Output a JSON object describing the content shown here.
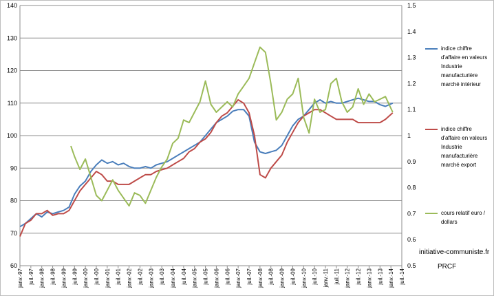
{
  "chart_data": {
    "type": "line",
    "title": "",
    "xlabel": "",
    "ylabel": "",
    "ylim": [
      60,
      140
    ],
    "y_ticks": [
      "60",
      "70",
      "80",
      "90",
      "100",
      "110",
      "120",
      "130",
      "140"
    ],
    "y2lim": [
      0.5,
      1.5
    ],
    "y2_ticks": [
      "0.5",
      "0.6",
      "0.7",
      "0.8",
      "0.9",
      "1",
      "1.1",
      "1.2",
      "1.3",
      "1.4",
      "1.5"
    ],
    "x_tick_labels": [
      "janv.-97",
      "juil.-97",
      "janv.-98",
      "juil.-98",
      "janv.-99",
      "juil.-99",
      "janv.-00",
      "juil.-00",
      "janv.-01",
      "juil.-01",
      "janv.-02",
      "juil.-02",
      "janv.-03",
      "juil.-03",
      "janv.-04",
      "juil.-04",
      "janv.-05",
      "juil.-05",
      "janv.-06",
      "juil.-06",
      "janv.-07",
      "juil.-07",
      "janv.-08",
      "juil.-08",
      "janv.-09",
      "juil.-09",
      "janv.-10",
      "juil.-10",
      "janv.-11",
      "juil.-11",
      "janv.-12",
      "juil.-12",
      "janv.-13",
      "juil.-13",
      "janv.-14",
      "juil.-14"
    ],
    "x_start": "1997-01",
    "grid": true,
    "legend_position": "right",
    "series": [
      {
        "name": "indice chiffre d'affaire en valeurs Industrie manufacturière marché intérieur",
        "axis": "left",
        "color": "#4a7ebb",
        "points": [
          [
            0,
            72
          ],
          [
            3,
            73
          ],
          [
            6,
            74.5
          ],
          [
            9,
            76
          ],
          [
            12,
            75
          ],
          [
            15,
            76.5
          ],
          [
            18,
            76
          ],
          [
            21,
            76.5
          ],
          [
            24,
            77
          ],
          [
            27,
            78
          ],
          [
            30,
            82
          ],
          [
            33,
            84.5
          ],
          [
            36,
            86
          ],
          [
            39,
            89
          ],
          [
            42,
            91
          ],
          [
            45,
            92.5
          ],
          [
            48,
            91.5
          ],
          [
            51,
            92
          ],
          [
            54,
            91
          ],
          [
            57,
            91.5
          ],
          [
            60,
            90.5
          ],
          [
            63,
            90
          ],
          [
            66,
            90
          ],
          [
            69,
            90.5
          ],
          [
            72,
            90
          ],
          [
            75,
            91
          ],
          [
            78,
            91.5
          ],
          [
            81,
            92
          ],
          [
            84,
            93
          ],
          [
            87,
            94
          ],
          [
            90,
            95
          ],
          [
            93,
            96
          ],
          [
            96,
            97
          ],
          [
            99,
            98
          ],
          [
            102,
            100
          ],
          [
            105,
            102
          ],
          [
            108,
            104
          ],
          [
            111,
            105
          ],
          [
            114,
            106
          ],
          [
            117,
            107.5
          ],
          [
            120,
            108
          ],
          [
            123,
            108
          ],
          [
            126,
            106
          ],
          [
            129,
            98
          ],
          [
            132,
            95
          ],
          [
            135,
            94.5
          ],
          [
            138,
            95
          ],
          [
            141,
            95.5
          ],
          [
            144,
            97
          ],
          [
            147,
            100
          ],
          [
            150,
            103
          ],
          [
            153,
            105
          ],
          [
            156,
            106
          ],
          [
            159,
            108
          ],
          [
            162,
            110
          ],
          [
            165,
            111
          ],
          [
            168,
            110
          ],
          [
            171,
            110.5
          ],
          [
            174,
            110
          ],
          [
            177,
            110
          ],
          [
            180,
            110.5
          ],
          [
            183,
            111
          ],
          [
            186,
            111.5
          ],
          [
            189,
            111
          ],
          [
            192,
            110.5
          ],
          [
            195,
            110.5
          ],
          [
            198,
            109.5
          ],
          [
            201,
            109
          ],
          [
            205,
            110
          ]
        ]
      },
      {
        "name": "indice chiffre d'affaire en valeurs Industrie manufacturière marché export",
        "axis": "left",
        "color": "#be4b48",
        "points": [
          [
            0,
            69
          ],
          [
            3,
            73
          ],
          [
            6,
            74
          ],
          [
            9,
            76
          ],
          [
            12,
            76
          ],
          [
            15,
            77
          ],
          [
            18,
            75.5
          ],
          [
            21,
            76
          ],
          [
            24,
            76
          ],
          [
            27,
            77
          ],
          [
            30,
            80
          ],
          [
            33,
            83
          ],
          [
            36,
            85
          ],
          [
            39,
            87
          ],
          [
            42,
            89
          ],
          [
            45,
            88
          ],
          [
            48,
            86
          ],
          [
            51,
            86
          ],
          [
            54,
            85
          ],
          [
            57,
            85
          ],
          [
            60,
            85
          ],
          [
            63,
            86
          ],
          [
            66,
            87
          ],
          [
            69,
            88
          ],
          [
            72,
            88
          ],
          [
            75,
            89
          ],
          [
            78,
            89.5
          ],
          [
            81,
            90
          ],
          [
            84,
            91
          ],
          [
            87,
            92
          ],
          [
            90,
            93
          ],
          [
            93,
            95
          ],
          [
            96,
            96
          ],
          [
            99,
            98
          ],
          [
            102,
            99
          ],
          [
            105,
            101
          ],
          [
            108,
            104
          ],
          [
            111,
            106
          ],
          [
            114,
            107
          ],
          [
            117,
            109
          ],
          [
            120,
            111
          ],
          [
            123,
            110
          ],
          [
            126,
            107
          ],
          [
            129,
            100
          ],
          [
            132,
            88
          ],
          [
            135,
            87
          ],
          [
            138,
            90
          ],
          [
            141,
            92
          ],
          [
            144,
            94
          ],
          [
            147,
            98
          ],
          [
            150,
            101
          ],
          [
            153,
            104
          ],
          [
            156,
            106
          ],
          [
            159,
            107
          ],
          [
            162,
            108
          ],
          [
            165,
            108
          ],
          [
            168,
            107
          ],
          [
            171,
            106
          ],
          [
            174,
            105
          ],
          [
            177,
            105
          ],
          [
            180,
            105
          ],
          [
            183,
            105
          ],
          [
            186,
            104
          ],
          [
            189,
            104
          ],
          [
            192,
            104
          ],
          [
            195,
            104
          ],
          [
            198,
            104
          ],
          [
            201,
            105
          ],
          [
            205,
            107
          ]
        ]
      },
      {
        "name": "cours relatif euro / dollars",
        "axis": "right",
        "color": "#9bbb59",
        "points": [
          [
            28,
            0.96
          ],
          [
            30,
            0.92
          ],
          [
            33,
            0.87
          ],
          [
            36,
            0.91
          ],
          [
            39,
            0.84
          ],
          [
            42,
            0.77
          ],
          [
            45,
            0.75
          ],
          [
            48,
            0.79
          ],
          [
            51,
            0.83
          ],
          [
            54,
            0.79
          ],
          [
            57,
            0.76
          ],
          [
            60,
            0.73
          ],
          [
            63,
            0.78
          ],
          [
            66,
            0.77
          ],
          [
            69,
            0.74
          ],
          [
            72,
            0.79
          ],
          [
            75,
            0.84
          ],
          [
            78,
            0.88
          ],
          [
            81,
            0.91
          ],
          [
            84,
            0.97
          ],
          [
            87,
            0.99
          ],
          [
            90,
            1.06
          ],
          [
            93,
            1.05
          ],
          [
            96,
            1.09
          ],
          [
            99,
            1.13
          ],
          [
            102,
            1.21
          ],
          [
            105,
            1.12
          ],
          [
            108,
            1.09
          ],
          [
            111,
            1.11
          ],
          [
            114,
            1.13
          ],
          [
            117,
            1.11
          ],
          [
            120,
            1.16
          ],
          [
            123,
            1.19
          ],
          [
            126,
            1.22
          ],
          [
            129,
            1.28
          ],
          [
            132,
            1.34
          ],
          [
            135,
            1.32
          ],
          [
            138,
            1.2
          ],
          [
            141,
            1.06
          ],
          [
            144,
            1.09
          ],
          [
            147,
            1.14
          ],
          [
            150,
            1.16
          ],
          [
            153,
            1.22
          ],
          [
            156,
            1.07
          ],
          [
            159,
            1.01
          ],
          [
            162,
            1.14
          ],
          [
            165,
            1.09
          ],
          [
            168,
            1.1
          ],
          [
            171,
            1.2
          ],
          [
            174,
            1.22
          ],
          [
            177,
            1.13
          ],
          [
            180,
            1.09
          ],
          [
            183,
            1.11
          ],
          [
            186,
            1.18
          ],
          [
            189,
            1.12
          ],
          [
            192,
            1.16
          ],
          [
            195,
            1.13
          ],
          [
            198,
            1.14
          ],
          [
            201,
            1.15
          ],
          [
            205,
            1.09
          ]
        ]
      }
    ]
  },
  "legend": [
    {
      "text": "indice chiffre\nd'affaire en valeurs\nIndustrie\nmanufacturière\nmarché intérieur",
      "color": "#4a7ebb"
    },
    {
      "text": "indice chiffre\nd'affaire en valeurs\nIndustrie\nmanufacturière\nmarché export",
      "color": "#be4b48"
    },
    {
      "text": "cours relatif euro /\ndollars",
      "color": "#9bbb59"
    }
  ],
  "watermark": "initiative-communiste.fr",
  "brand": "PRCF"
}
